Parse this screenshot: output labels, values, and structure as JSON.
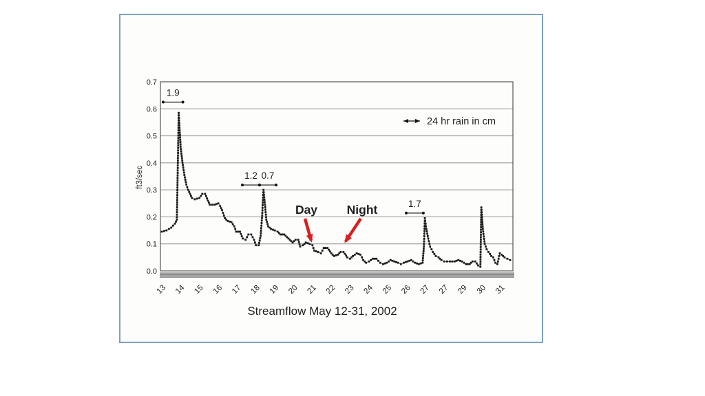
{
  "page": {
    "background": "#ffffff"
  },
  "slide": {
    "border_color": "#7d9fc7",
    "background": "#fdfdfc"
  },
  "chart_data": {
    "type": "line",
    "title": "Streamflow May 12-31, 2002",
    "ylabel": "ft3/sec",
    "xlabel": "Streamflow May 12-31, 2002",
    "ylim": [
      0.0,
      0.7
    ],
    "y_ticks": [
      0.0,
      0.1,
      0.2,
      0.3,
      0.4,
      0.5,
      0.6,
      0.7
    ],
    "x_tick_labels": [
      "13",
      "14",
      "15",
      "16",
      "17",
      "18",
      "19",
      "20",
      "21",
      "22",
      "23",
      "24",
      "25",
      "26",
      "27",
      "27",
      "29",
      "30",
      "31"
    ],
    "grid": "horizontal",
    "legend": {
      "label": "24 hr rain in cm",
      "position": "upper-right"
    },
    "colors": {
      "curve": "#1b1b1b",
      "grid": "#8f8f8f",
      "axis": "#555555",
      "annotation": "#111111",
      "callout_arrow": "#d92020",
      "rain_band": "#a9a9a9"
    },
    "series": [
      {
        "name": "streamflow",
        "units": "ft3/sec",
        "marker": "square",
        "points": [
          [
            0,
            0.145
          ],
          [
            0.25,
            0.15
          ],
          [
            0.5,
            0.16
          ],
          [
            0.7,
            0.175
          ],
          [
            0.8,
            0.19
          ],
          [
            0.85,
            0.39
          ],
          [
            0.9,
            0.585
          ],
          [
            0.95,
            0.52
          ],
          [
            1,
            0.46
          ],
          [
            1.1,
            0.4
          ],
          [
            1.2,
            0.355
          ],
          [
            1.3,
            0.32
          ],
          [
            1.4,
            0.3
          ],
          [
            1.5,
            0.285
          ],
          [
            1.6,
            0.27
          ],
          [
            1.75,
            0.265
          ],
          [
            2,
            0.27
          ],
          [
            2.15,
            0.285
          ],
          [
            2.3,
            0.285
          ],
          [
            2.45,
            0.26
          ],
          [
            2.55,
            0.245
          ],
          [
            2.8,
            0.245
          ],
          [
            3,
            0.25
          ],
          [
            3.1,
            0.24
          ],
          [
            3.2,
            0.225
          ],
          [
            3.35,
            0.195
          ],
          [
            3.5,
            0.185
          ],
          [
            3.7,
            0.18
          ],
          [
            3.85,
            0.165
          ],
          [
            3.95,
            0.145
          ],
          [
            4.15,
            0.145
          ],
          [
            4.3,
            0.12
          ],
          [
            4.45,
            0.115
          ],
          [
            4.6,
            0.135
          ],
          [
            4.75,
            0.135
          ],
          [
            4.9,
            0.115
          ],
          [
            5,
            0.095
          ],
          [
            5.15,
            0.095
          ],
          [
            5.25,
            0.13
          ],
          [
            5.33,
            0.205
          ],
          [
            5.4,
            0.3
          ],
          [
            5.48,
            0.245
          ],
          [
            5.55,
            0.19
          ],
          [
            5.65,
            0.165
          ],
          [
            5.8,
            0.155
          ],
          [
            6,
            0.15
          ],
          [
            6.15,
            0.145
          ],
          [
            6.3,
            0.135
          ],
          [
            6.5,
            0.135
          ],
          [
            6.65,
            0.125
          ],
          [
            6.8,
            0.115
          ],
          [
            6.95,
            0.105
          ],
          [
            7.1,
            0.115
          ],
          [
            7.25,
            0.115
          ],
          [
            7.35,
            0.09
          ],
          [
            7.5,
            0.095
          ],
          [
            7.65,
            0.105
          ],
          [
            7.85,
            0.1
          ],
          [
            8,
            0.095
          ],
          [
            8.1,
            0.075
          ],
          [
            8.3,
            0.07
          ],
          [
            8.45,
            0.065
          ],
          [
            8.6,
            0.085
          ],
          [
            8.8,
            0.085
          ],
          [
            9,
            0.065
          ],
          [
            9.15,
            0.055
          ],
          [
            9.35,
            0.06
          ],
          [
            9.5,
            0.07
          ],
          [
            9.65,
            0.07
          ],
          [
            9.85,
            0.05
          ],
          [
            10,
            0.045
          ],
          [
            10.15,
            0.055
          ],
          [
            10.35,
            0.065
          ],
          [
            10.55,
            0.06
          ],
          [
            10.7,
            0.04
          ],
          [
            10.85,
            0.03
          ],
          [
            11,
            0.035
          ],
          [
            11.2,
            0.045
          ],
          [
            11.4,
            0.045
          ],
          [
            11.6,
            0.03
          ],
          [
            11.75,
            0.025
          ],
          [
            11.95,
            0.03
          ],
          [
            12.15,
            0.04
          ],
          [
            12.35,
            0.035
          ],
          [
            12.55,
            0.03
          ],
          [
            12.7,
            0.025
          ],
          [
            12.85,
            0.03
          ],
          [
            13.05,
            0.035
          ],
          [
            13.25,
            0.04
          ],
          [
            13.45,
            0.03
          ],
          [
            13.65,
            0.025
          ],
          [
            13.85,
            0.03
          ],
          [
            13.92,
            0.09
          ],
          [
            13.97,
            0.195
          ],
          [
            14.05,
            0.155
          ],
          [
            14.15,
            0.12
          ],
          [
            14.25,
            0.09
          ],
          [
            14.4,
            0.07
          ],
          [
            14.55,
            0.055
          ],
          [
            14.7,
            0.05
          ],
          [
            14.85,
            0.04
          ],
          [
            15,
            0.035
          ],
          [
            15.3,
            0.035
          ],
          [
            15.55,
            0.035
          ],
          [
            15.75,
            0.04
          ],
          [
            15.95,
            0.035
          ],
          [
            16.15,
            0.025
          ],
          [
            16.35,
            0.025
          ],
          [
            16.5,
            0.035
          ],
          [
            16.65,
            0.035
          ],
          [
            16.8,
            0.02
          ],
          [
            16.92,
            0.015
          ],
          [
            16.97,
            0.235
          ],
          [
            17.05,
            0.155
          ],
          [
            17.15,
            0.1
          ],
          [
            17.25,
            0.08
          ],
          [
            17.35,
            0.07
          ],
          [
            17.5,
            0.055
          ],
          [
            17.6,
            0.05
          ],
          [
            17.72,
            0.03
          ],
          [
            17.82,
            0.025
          ],
          [
            17.95,
            0.065
          ],
          [
            18.05,
            0.06
          ],
          [
            18.2,
            0.05
          ],
          [
            18.35,
            0.045
          ],
          [
            18.5,
            0.04
          ]
        ]
      }
    ],
    "rain_annotations": [
      {
        "label": "1.9",
        "x_start": 0.07,
        "x_end": 1.12,
        "y": 0.625
      },
      {
        "label": "1.2",
        "x_start": 4.28,
        "x_end": 5.19,
        "y": 0.318
      },
      {
        "label": "0.7",
        "x_start": 5.19,
        "x_end": 6.07,
        "y": 0.318
      },
      {
        "label": "1.7",
        "x_start": 12.98,
        "x_end": 13.89,
        "y": 0.214
      }
    ],
    "callouts": [
      {
        "label": "Day"
      },
      {
        "label": "Night"
      }
    ]
  }
}
